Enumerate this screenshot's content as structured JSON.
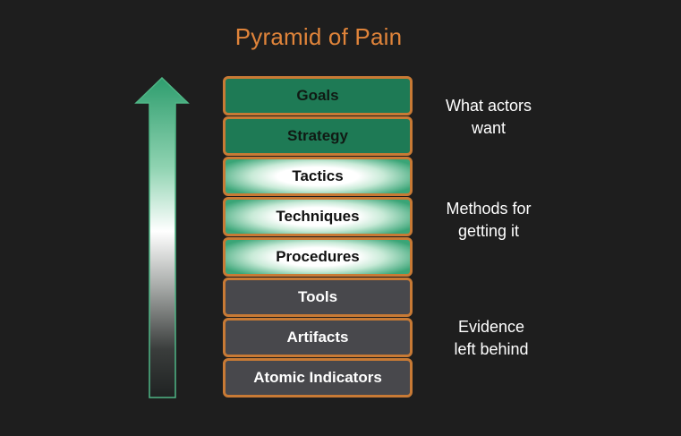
{
  "title": "Pyramid of Pain",
  "levels": [
    {
      "label": "Goals",
      "group": "goals"
    },
    {
      "label": "Strategy",
      "group": "goals"
    },
    {
      "label": "Tactics",
      "group": "tactics"
    },
    {
      "label": "Techniques",
      "group": "tactics"
    },
    {
      "label": "Procedures",
      "group": "tactics"
    },
    {
      "label": "Tools",
      "group": "tools"
    },
    {
      "label": "Artifacts",
      "group": "tools"
    },
    {
      "label": "Atomic Indicators",
      "group": "tools"
    }
  ],
  "annotations": {
    "goals": {
      "line1": "What actors",
      "line2": "want"
    },
    "methods": {
      "line1": "Methods for",
      "line2": "getting it"
    },
    "evidence": {
      "line1": "Evidence",
      "line2": "left behind"
    }
  },
  "colors": {
    "title": "#e0843a",
    "border": "#c87a35",
    "goals_fill": "#1e7a55",
    "tactics_edge": "#3aa577",
    "tools_fill": "#48484c",
    "background": "#1e1e1e"
  },
  "arrow": {
    "direction": "up",
    "gradient": "dark-to-white-to-green"
  }
}
